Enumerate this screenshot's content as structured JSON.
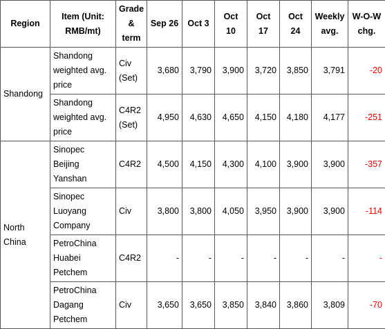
{
  "table": {
    "header": [
      "Region",
      "Item (Unit: RMB/mt)",
      "Grade & term",
      "Sep 26",
      "Oct 3",
      "Oct 10",
      "Oct 17",
      "Oct 24",
      "Weekly avg.",
      "W-O-W chg."
    ],
    "groups": [
      {
        "region": "Shandong",
        "rows": [
          {
            "item": "Shandong weighted avg. price",
            "grade": "Civ (Set)",
            "prices": [
              "3,680",
              "3,790",
              "3,900",
              "3,720",
              "3,850"
            ],
            "weekly_avg": "3,791",
            "wow": "-20"
          },
          {
            "item": "Shandong weighted avg. price",
            "grade": "C4R2 (Set)",
            "prices": [
              "4,950",
              "4,630",
              "4,650",
              "4,150",
              "4,180"
            ],
            "weekly_avg": "4,177",
            "wow": "-251"
          }
        ]
      },
      {
        "region": "North China",
        "rows": [
          {
            "item": "Sinopec Beijing Yanshan",
            "grade": "C4R2",
            "prices": [
              "4,500",
              "4,150",
              "4,300",
              "4,100",
              "3,900"
            ],
            "weekly_avg": "3,900",
            "wow": "-357"
          },
          {
            "item": "Sinopec Luoyang Company",
            "grade": "Civ",
            "prices": [
              "3,800",
              "3,800",
              "4,050",
              "3,950",
              "3,900"
            ],
            "weekly_avg": "3,900",
            "wow": "-114"
          },
          {
            "item": "PetroChina Huabei Petchem",
            "grade": "C4R2",
            "prices": [
              "-",
              "-",
              "-",
              "-",
              "-"
            ],
            "weekly_avg": "-",
            "wow": "-"
          },
          {
            "item": "PetroChina Dagang Petchem",
            "grade": "Civ",
            "prices": [
              "3,650",
              "3,650",
              "3,850",
              "3,840",
              "3,860"
            ],
            "weekly_avg": "3,809",
            "wow": "-70"
          }
        ]
      }
    ]
  }
}
